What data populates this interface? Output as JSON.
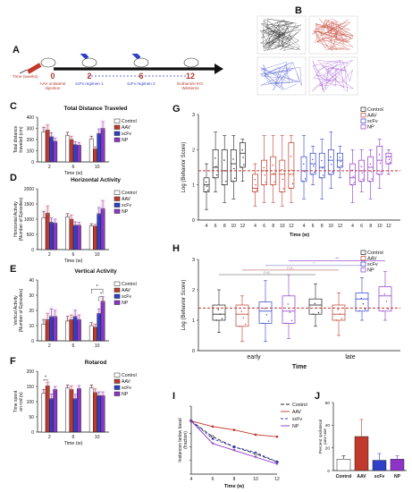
{
  "panels": {
    "A": "A",
    "B": "B",
    "C": "C",
    "D": "D",
    "E": "E",
    "F": "F",
    "G": "G",
    "H": "H",
    "I": "I",
    "J": "J"
  },
  "timeline": {
    "time_label": "Time (weeks)",
    "events": [
      {
        "week": "0",
        "label": "AAV unilateral injection"
      },
      {
        "week": "2",
        "label": "scFv regimen 1"
      },
      {
        "week": "6",
        "label": "scFv regimen 2"
      },
      {
        "week": "12",
        "label": "Euthanize IHC Westerns"
      }
    ]
  },
  "colors": {
    "control": "#ffffff",
    "aav": "#c0392b",
    "scfv": "#2e3fc8",
    "np": "#8e35c8",
    "dash": "#c0392b",
    "timeline_red": "#b23a2b"
  },
  "chart_data": [
    {
      "id": "C",
      "type": "bar",
      "title": "Total Distance Traveled",
      "ylabel": "Total distance traveled (cm)",
      "xlabel": "Time (w)",
      "ylim": [
        0,
        400
      ],
      "yticks": [
        "0",
        "100",
        "200",
        "300",
        "400"
      ],
      "categories": [
        "2",
        "6",
        "10"
      ],
      "series": [
        {
          "name": "Control",
          "values": [
            270,
            235,
            205
          ]
        },
        {
          "name": "AAV",
          "values": [
            285,
            200,
            115
          ]
        },
        {
          "name": "scFv",
          "values": [
            225,
            155,
            255
          ]
        },
        {
          "name": "NP",
          "values": [
            185,
            150,
            300
          ]
        }
      ],
      "errors": [
        [
          40,
          30,
          25
        ],
        [
          45,
          30,
          20
        ],
        [
          35,
          25,
          40
        ],
        [
          30,
          25,
          60
        ]
      ],
      "annotations": []
    },
    {
      "id": "D",
      "type": "bar",
      "title": "Horizontal Activity",
      "ylabel": "Horizontal Activity (Number of Episodes)",
      "xlabel": "Time (w)",
      "ylim": [
        0,
        2000
      ],
      "yticks": [
        "0",
        "500",
        "1000",
        "1500",
        "2000"
      ],
      "categories": [
        "2",
        "6",
        "10"
      ],
      "series": [
        {
          "name": "Control",
          "values": [
            1050,
            1080,
            780
          ]
        },
        {
          "name": "AAV",
          "values": [
            1200,
            1000,
            770
          ]
        },
        {
          "name": "scFv",
          "values": [
            900,
            800,
            1180
          ]
        },
        {
          "name": "NP",
          "values": [
            870,
            800,
            1350
          ]
        }
      ],
      "errors": [
        [
          200,
          100,
          70
        ],
        [
          220,
          130,
          60
        ],
        [
          140,
          110,
          200
        ],
        [
          130,
          100,
          250
        ]
      ],
      "annotations": []
    },
    {
      "id": "E",
      "type": "bar",
      "title": "Vertical Activity",
      "ylabel": "Vertical Activity (Number of Episodes)",
      "xlabel": "",
      "ylim": [
        0,
        40
      ],
      "yticks": [
        "0",
        "10",
        "20",
        "30",
        "40"
      ],
      "categories": [
        "2",
        "6",
        "10"
      ],
      "series": [
        {
          "name": "Control",
          "values": [
            11,
            13,
            10
          ]
        },
        {
          "name": "AAV",
          "values": [
            14,
            14,
            9
          ]
        },
        {
          "name": "scFv",
          "values": [
            16,
            16,
            18
          ]
        },
        {
          "name": "NP",
          "values": [
            16,
            14,
            26
          ]
        }
      ],
      "errors": [
        [
          3,
          3,
          2
        ],
        [
          4,
          3,
          2
        ],
        [
          5,
          4,
          3
        ],
        [
          4,
          3,
          3
        ]
      ],
      "annotations": [
        "*",
        "*"
      ]
    },
    {
      "id": "F",
      "type": "bar",
      "title": "Rotarod",
      "ylabel": "Time spent on rod (s)",
      "xlabel": "Time (w)",
      "ylim": [
        0,
        200
      ],
      "yticks": [
        "0",
        "50",
        "100",
        "150",
        "200"
      ],
      "categories": [
        "2",
        "6",
        "10"
      ],
      "series": [
        {
          "name": "Control",
          "values": [
            128,
            145,
            145
          ]
        },
        {
          "name": "AAV",
          "values": [
            152,
            140,
            130
          ]
        },
        {
          "name": "scFv",
          "values": [
            110,
            110,
            120
          ]
        },
        {
          "name": "NP",
          "values": [
            140,
            143,
            120
          ]
        }
      ],
      "errors": [
        [
          12,
          10,
          10
        ],
        [
          12,
          12,
          12
        ],
        [
          15,
          14,
          12
        ],
        [
          10,
          10,
          12
        ]
      ],
      "annotations": [
        "*"
      ]
    },
    {
      "id": "G",
      "type": "box",
      "title": "",
      "ylabel": "Log (Behavior Score)",
      "xlabel": "Time (w)",
      "yticks": [
        "0",
        "1",
        "2",
        "3"
      ],
      "ylim": [
        0,
        3
      ],
      "reference_line": 1.4,
      "legend": [
        "Control",
        "AAV",
        "scFv",
        "NP"
      ],
      "groups": [
        {
          "series": "Control",
          "x": [
            "4",
            "6",
            "8",
            "10",
            "12"
          ],
          "boxes": [
            [
              0.3,
              0.8,
              1.0,
              1.2,
              1.6
            ],
            [
              0.8,
              1.2,
              1.5,
              2.0,
              2.5
            ],
            [
              0.5,
              1.0,
              1.4,
              2.0,
              2.4
            ],
            [
              0.6,
              1.1,
              1.6,
              2.0,
              2.4
            ],
            [
              1.1,
              1.5,
              1.9,
              2.2,
              2.3
            ]
          ]
        },
        {
          "series": "AAV",
          "x": [
            "4",
            "6",
            "8",
            "10",
            "12"
          ],
          "boxes": [
            [
              0.4,
              0.8,
              0.9,
              1.3,
              1.6
            ],
            [
              0.5,
              1.0,
              1.4,
              1.7,
              2.4
            ],
            [
              0.5,
              1.0,
              1.3,
              1.8,
              2.4
            ],
            [
              0.4,
              0.8,
              1.3,
              1.7,
              2.4
            ],
            [
              0.5,
              0.9,
              1.3,
              2.2,
              2.4
            ]
          ]
        },
        {
          "series": "scFv",
          "x": [
            "4",
            "6",
            "8",
            "10",
            "12"
          ],
          "boxes": [
            [
              0.6,
              1.1,
              1.4,
              1.8,
              2.4
            ],
            [
              1.0,
              1.3,
              1.6,
              1.9,
              2.1
            ],
            [
              0.6,
              1.2,
              1.5,
              1.9,
              2.3
            ],
            [
              0.9,
              1.3,
              1.7,
              2.0,
              2.5
            ],
            [
              1.2,
              1.5,
              1.7,
              1.9,
              2.1
            ]
          ]
        },
        {
          "series": "NP",
          "x": [
            "4",
            "6",
            "8",
            "10",
            "12"
          ],
          "boxes": [
            [
              0.5,
              1.0,
              1.2,
              1.6,
              2.0
            ],
            [
              0.8,
              1.1,
              1.4,
              1.7,
              2.0
            ],
            [
              0.6,
              1.1,
              1.5,
              1.8,
              2.0
            ],
            [
              0.9,
              1.3,
              1.7,
              2.1,
              2.3
            ],
            [
              1.3,
              1.6,
              1.8,
              1.9,
              2.0
            ]
          ]
        }
      ]
    },
    {
      "id": "H",
      "type": "box",
      "title": "",
      "ylabel": "Log (Behavior Score)",
      "xlabel": "Time",
      "categories": [
        "early",
        "late"
      ],
      "yticks": [
        "0",
        "1",
        "2",
        "3"
      ],
      "ylim": [
        0,
        3
      ],
      "reference_line": 1.4,
      "legend": [
        "Control",
        "AAV",
        "scFv",
        "NP"
      ],
      "boxes": [
        [
          0.6,
          1.0,
          1.2,
          1.5,
          2.0
        ],
        [
          0.3,
          0.8,
          1.2,
          1.5,
          1.8
        ],
        [
          0.3,
          0.9,
          1.3,
          1.6,
          2.3
        ],
        [
          0.4,
          0.9,
          1.3,
          1.8,
          2.5
        ],
        [
          0.8,
          1.2,
          1.5,
          1.7,
          2.2
        ],
        [
          0.5,
          1.0,
          1.2,
          1.5,
          1.9
        ],
        [
          1.0,
          1.3,
          1.7,
          1.9,
          2.4
        ],
        [
          1.0,
          1.3,
          1.8,
          2.1,
          2.6
        ]
      ],
      "annotations": [
        "n.s.",
        "n.s.",
        "*",
        "**"
      ]
    },
    {
      "id": "I",
      "type": "line",
      "title": "",
      "ylabel": "Instances below basal (fraction)",
      "xlabel": "Time (w)",
      "x": [
        4,
        6,
        8,
        10,
        12
      ],
      "xticks": [
        "4",
        "6",
        "8",
        "10",
        "12"
      ],
      "yticks": [
        "0.0",
        "0.2",
        "0.4",
        "0.6",
        "0.8",
        "1.0"
      ],
      "ylim": [
        0,
        1
      ],
      "series": [
        {
          "name": "Control",
          "values": [
            0.78,
            0.55,
            0.4,
            0.3,
            0.18
          ]
        },
        {
          "name": "AAV",
          "values": [
            0.78,
            0.7,
            0.65,
            0.58,
            0.55
          ]
        },
        {
          "name": "scFv",
          "values": [
            0.78,
            0.52,
            0.4,
            0.32,
            0.18
          ]
        },
        {
          "name": "NP",
          "values": [
            0.78,
            0.45,
            0.35,
            0.25,
            0.15
          ]
        }
      ]
    },
    {
      "id": "J",
      "type": "bar",
      "title": "",
      "ylabel": "Percent ipsilateral paw use",
      "xlabel": "",
      "categories": [
        "Control",
        "AAV",
        "scFv",
        "NP"
      ],
      "yticks": [
        "0",
        "20",
        "40",
        "60"
      ],
      "ylim": [
        0,
        60
      ],
      "values": [
        10,
        30,
        9,
        10
      ],
      "errors": [
        3,
        15,
        6,
        3
      ]
    }
  ]
}
